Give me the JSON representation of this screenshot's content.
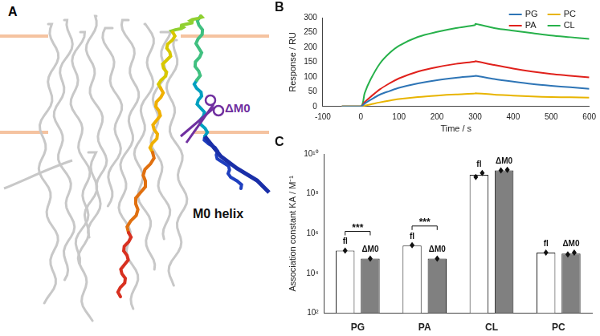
{
  "panel_a": {
    "panel_label": "A",
    "annotations": [
      "ΔM0",
      "M0 helix"
    ]
  },
  "chart_data": [
    {
      "panel_label": "B",
      "type": "line",
      "x_label": "Time / s",
      "y_label": "Response / RU",
      "x": [
        -50,
        0,
        10,
        25,
        50,
        75,
        100,
        150,
        200,
        250,
        300,
        301,
        350,
        400,
        450,
        500,
        550,
        600
      ],
      "series": [
        {
          "name": "PG",
          "color": "#2e75b6",
          "values": [
            0,
            0,
            10,
            22,
            40,
            52,
            63,
            78,
            89,
            97,
            103,
            104,
            93,
            84,
            76,
            70,
            65,
            60
          ]
        },
        {
          "name": "PC",
          "color": "#e8b400",
          "values": [
            0,
            0,
            3,
            7,
            14,
            20,
            25,
            32,
            37,
            41,
            44,
            45,
            40,
            37,
            34,
            32,
            31,
            30
          ]
        },
        {
          "name": "PA",
          "color": "#e0211c",
          "values": [
            0,
            0,
            15,
            32,
            58,
            78,
            95,
            118,
            133,
            144,
            152,
            153,
            140,
            128,
            118,
            110,
            104,
            98
          ]
        },
        {
          "name": "CL",
          "color": "#27b14b",
          "values": [
            0,
            0,
            45,
            90,
            145,
            180,
            205,
            235,
            252,
            265,
            275,
            279,
            265,
            256,
            248,
            240,
            234,
            228
          ]
        }
      ],
      "xlim": [
        -100,
        600
      ],
      "xticks": [
        -100,
        0,
        100,
        200,
        300,
        400,
        500,
        600
      ],
      "ylim": [
        0,
        300
      ],
      "yticks": [
        0,
        50,
        100,
        150,
        200,
        250,
        300
      ],
      "legend": "upper right",
      "grid": false
    },
    {
      "panel_label": "C",
      "type": "bar",
      "y_label": "Association constant KA / M⁻¹",
      "categories": [
        "PG",
        "PA",
        "CL",
        "PC"
      ],
      "series": [
        {
          "name": "fl",
          "color": "#ffffff",
          "values": [
            140000,
            250000,
            900000000,
            110000
          ],
          "points": [
            [
              140000
            ],
            [
              260000
            ],
            [
              700000000,
              1100000000
            ],
            [
              110000
            ]
          ]
        },
        {
          "name": "ΔM0",
          "color": "#808080",
          "values": [
            55000,
            55000,
            1500000000,
            100000
          ],
          "points": [
            [
              55000
            ],
            [
              55000
            ],
            [
              1500000000,
              1600000000
            ],
            [
              90000,
              110000
            ]
          ]
        }
      ],
      "log": "y",
      "ylim": [
        100,
        10000000000
      ],
      "yticks": [
        {
          "value": 100,
          "label": "10²"
        },
        {
          "value": 10000,
          "label": "10⁴"
        },
        {
          "value": 1000000,
          "label": "10⁶"
        },
        {
          "value": 100000000,
          "label": "10⁸"
        },
        {
          "value": 10000000000,
          "label": "10¹⁰"
        }
      ],
      "annotations": [
        {
          "text": "***",
          "category": "PG"
        },
        {
          "text": "***",
          "category": "PA"
        }
      ],
      "grid": false
    }
  ]
}
